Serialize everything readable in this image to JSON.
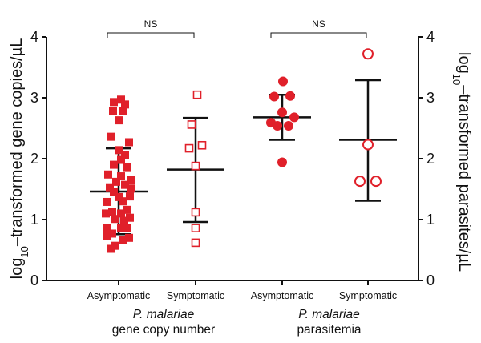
{
  "chart_data": {
    "type": "scatter",
    "y_left_label": {
      "prefix": "log",
      "sub": "10",
      "rest": "–transformed gene copies/µL"
    },
    "y_right_label": {
      "prefix": "log",
      "sub": "10",
      "rest": "–transformed parasites/µL"
    },
    "ylim": [
      0,
      4
    ],
    "y_ticks": [
      "0",
      "1",
      "2",
      "3",
      "4"
    ],
    "categories": [
      "Asymptomatic",
      "Symptomatic",
      "Asymptomatic",
      "Symptomatic"
    ],
    "group_labels": [
      {
        "italic": "P. malariae",
        "normal": "gene copy number"
      },
      {
        "italic": "P. malariae",
        "normal": "parasitemia"
      }
    ],
    "significance": [
      {
        "label": "NS",
        "from": 0,
        "to": 1
      },
      {
        "label": "NS",
        "from": 2,
        "to": 3
      }
    ],
    "colors": {
      "marker": "#e0202a",
      "error": "#111111"
    },
    "series": [
      {
        "category": 0,
        "axis": "left",
        "marker": "filled-square",
        "mean": 1.46,
        "sd_low": 0.76,
        "sd_high": 2.17,
        "points": [
          [
            -0.06,
            2.93
          ],
          [
            0.03,
            2.97
          ],
          [
            0.08,
            2.89
          ],
          [
            -0.07,
            2.78
          ],
          [
            0.06,
            2.78
          ],
          [
            0.01,
            2.63
          ],
          [
            -0.1,
            2.36
          ],
          [
            0.13,
            2.27
          ],
          [
            0.0,
            2.14
          ],
          [
            0.08,
            2.06
          ],
          [
            0.03,
            1.98
          ],
          [
            -0.06,
            1.9
          ],
          [
            0.1,
            1.86
          ],
          [
            -0.13,
            1.74
          ],
          [
            0.03,
            1.71
          ],
          [
            0.16,
            1.65
          ],
          [
            -0.03,
            1.62
          ],
          [
            0.08,
            1.57
          ],
          [
            -0.11,
            1.53
          ],
          [
            0.16,
            1.51
          ],
          [
            -0.06,
            1.46
          ],
          [
            0.14,
            1.38
          ],
          [
            0.0,
            1.37
          ],
          [
            0.06,
            1.3
          ],
          [
            -0.14,
            1.29
          ],
          [
            0.11,
            1.16
          ],
          [
            -0.08,
            1.13
          ],
          [
            0.03,
            1.1
          ],
          [
            -0.16,
            1.1
          ],
          [
            0.14,
            1.03
          ],
          [
            0.07,
            0.98
          ],
          [
            -0.04,
            1.01
          ],
          [
            -0.15,
            0.86
          ],
          [
            0.03,
            0.86
          ],
          [
            0.11,
            0.86
          ],
          [
            -0.08,
            0.77
          ],
          [
            -0.14,
            0.73
          ],
          [
            0.13,
            0.7
          ],
          [
            0.06,
            0.66
          ],
          [
            -0.04,
            0.57
          ],
          [
            -0.1,
            0.52
          ]
        ]
      },
      {
        "category": 1,
        "axis": "left",
        "marker": "open-square",
        "mean": 1.82,
        "sd_low": 0.96,
        "sd_high": 2.67,
        "points": [
          [
            0.02,
            3.05
          ],
          [
            -0.05,
            2.56
          ],
          [
            0.08,
            2.22
          ],
          [
            -0.08,
            2.17
          ],
          [
            0.0,
            1.88
          ],
          [
            0.0,
            1.12
          ],
          [
            0.0,
            0.86
          ],
          [
            0.0,
            0.62
          ]
        ]
      },
      {
        "category": 2,
        "axis": "right",
        "marker": "filled-circle",
        "mean": 2.68,
        "sd_low": 2.31,
        "sd_high": 3.05,
        "points": [
          [
            0.01,
            3.27
          ],
          [
            -0.1,
            3.02
          ],
          [
            0.1,
            3.03
          ],
          [
            0.0,
            2.76
          ],
          [
            0.15,
            2.68
          ],
          [
            -0.14,
            2.59
          ],
          [
            -0.06,
            2.54
          ],
          [
            0.08,
            2.54
          ],
          [
            0.0,
            1.94
          ]
        ]
      },
      {
        "category": 3,
        "axis": "right",
        "marker": "open-circle",
        "mean": 2.31,
        "sd_low": 1.31,
        "sd_high": 3.29,
        "points": [
          [
            0.0,
            3.72
          ],
          [
            0.0,
            2.23
          ],
          [
            -0.1,
            1.63
          ],
          [
            0.1,
            1.63
          ]
        ]
      }
    ]
  }
}
